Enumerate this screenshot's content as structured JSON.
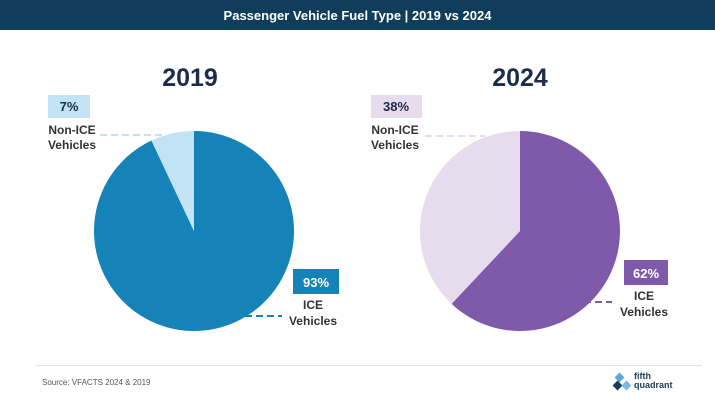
{
  "header": {
    "title": "Passenger Vehicle Fuel Type | 2019 vs 2024"
  },
  "chart_data": [
    {
      "type": "pie",
      "title": "2019",
      "slices": [
        {
          "label": "ICE Vehicles",
          "value": 93,
          "display": "93%",
          "color": "#1582b8"
        },
        {
          "label": "Non-ICE Vehicles",
          "value": 7,
          "display": "7%",
          "color": "#c2e3f4"
        }
      ]
    },
    {
      "type": "pie",
      "title": "2024",
      "slices": [
        {
          "label": "ICE Vehicles",
          "value": 62,
          "display": "62%",
          "color": "#805aaa"
        },
        {
          "label": "Non-ICE Vehicles",
          "value": 38,
          "display": "38%",
          "color": "#e7dbee"
        }
      ]
    }
  ],
  "labels": {
    "non_ice_line1": "Non-ICE",
    "ice_line1": "ICE",
    "line2": "Vehicles"
  },
  "footer": {
    "source": "Source: VFACTS 2024 & 2019",
    "logo_line1": "fifth",
    "logo_line2": "quadrant"
  }
}
